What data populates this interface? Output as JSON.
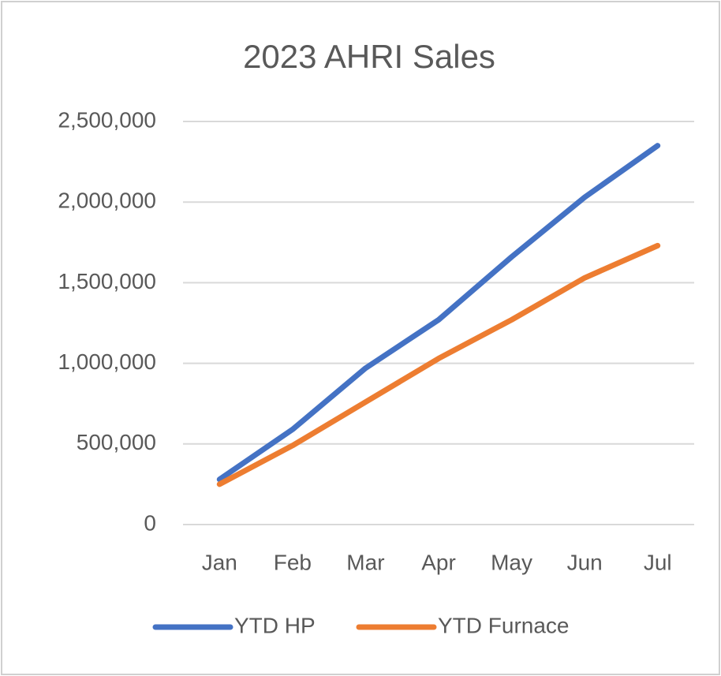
{
  "chart_data": {
    "type": "line",
    "title": "2023 AHRI Sales",
    "categories": [
      "Jan",
      "Feb",
      "Mar",
      "Apr",
      "May",
      "Jun",
      "Jul"
    ],
    "series": [
      {
        "name": "YTD HP",
        "color": "#4472c4",
        "values": [
          280000,
          590000,
          970000,
          1270000,
          1660000,
          2030000,
          2350000
        ]
      },
      {
        "name": "YTD Furnace",
        "color": "#ed7d31",
        "values": [
          250000,
          490000,
          760000,
          1030000,
          1270000,
          1530000,
          1730000
        ]
      }
    ],
    "ylim": [
      0,
      2500000
    ],
    "yticks": [
      0,
      {
        "value": 500000,
        "label": "500,000"
      },
      {
        "value": 1000000,
        "label": "1,000,000"
      },
      {
        "value": 1500000,
        "label": "1,500,000"
      },
      {
        "value": 2000000,
        "label": "2,000,000"
      },
      {
        "value": 2500000,
        "label": "2,500,000"
      }
    ],
    "grid": true,
    "legend": "bottom"
  }
}
